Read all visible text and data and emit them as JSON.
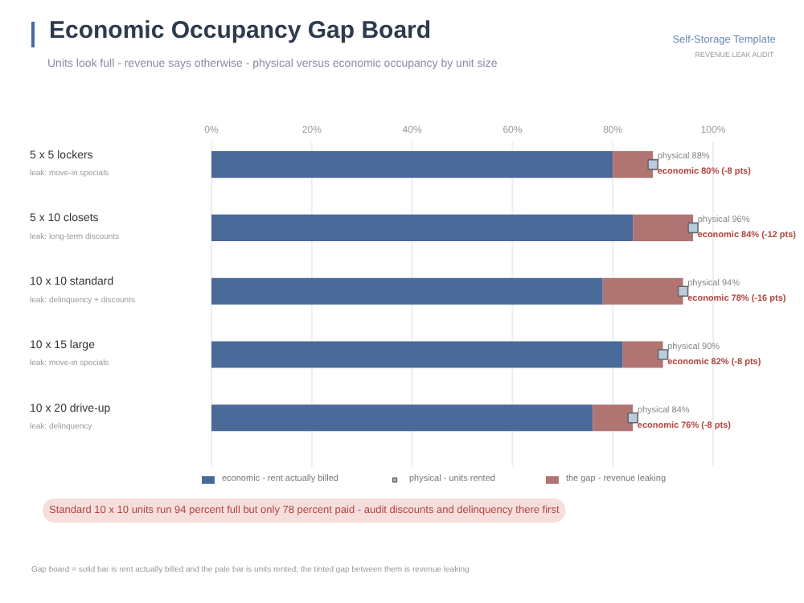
{
  "chart_data": {
    "type": "bar",
    "orientation": "horizontal",
    "stacked": true,
    "title": "Economic Occupancy Gap Board",
    "subtitle": "Units look full - revenue says otherwise - physical versus economic occupancy by unit size",
    "categories": [
      "5 x 5 lockers",
      "5 x 10 closets",
      "10 x 10 standard",
      "10 x 15 large",
      "10 x 20 drive-up"
    ],
    "series": [
      {
        "name": "economic - rent actually billed",
        "color": "#4a6b9a",
        "values": [
          80,
          84,
          78,
          82,
          76
        ]
      },
      {
        "name": "the gap - revenue leaking",
        "color": "#b07572",
        "values": [
          8,
          12,
          16,
          8,
          8
        ]
      },
      {
        "name": "physical - units rented",
        "type": "scatter",
        "color": "#b9cbe0",
        "values": [
          88,
          96,
          94,
          90,
          84
        ],
        "value_labels": [
          "physical 88%",
          "physical 96%",
          "physical 94%",
          "physical 90%",
          "physical 84%"
        ]
      }
    ],
    "xlim": [
      0,
      100
    ],
    "xticks": [
      {
        "value": 0,
        "label": "0%"
      },
      {
        "value": 20,
        "label": "20%"
      },
      {
        "value": 40,
        "label": "40%"
      },
      {
        "value": 60,
        "label": "60%"
      },
      {
        "value": 80,
        "label": "80%"
      },
      {
        "value": 100,
        "label": "100%"
      }
    ],
    "grid": "x",
    "legend": "bottom",
    "marker": "square",
    "annotations": [
      "Self-Storage Template",
      "REVENUE LEAK AUDIT",
      "Standard 10 x 10 units run 94 percent full but only 78 percent paid - audit discounts and delinquency there first",
      "Gap board = solid bar is rent actually billed and the pale bar is units rented; the tinted gap between them is revenue leaking",
      "leak: move-in specials",
      "leak: long-term discounts",
      "leak: delinquency + discounts",
      "leak: move-in specials",
      "leak: delinquency",
      {
        "text": "economic 80% (-8 pts)",
        "x": 88,
        "y": "5 x 5 lockers"
      },
      {
        "text": "economic 84% (-12 pts)",
        "x": 96,
        "y": "5 x 10 closets"
      },
      {
        "text": "economic 78% (-16 pts)",
        "x": 94,
        "y": "10 x 10 standard"
      },
      {
        "text": "economic 82% (-8 pts)",
        "x": 90,
        "y": "10 x 15 large"
      },
      {
        "text": "economic 76% (-8 pts)",
        "x": 84,
        "y": "10 x 20 drive-up"
      }
    ]
  }
}
